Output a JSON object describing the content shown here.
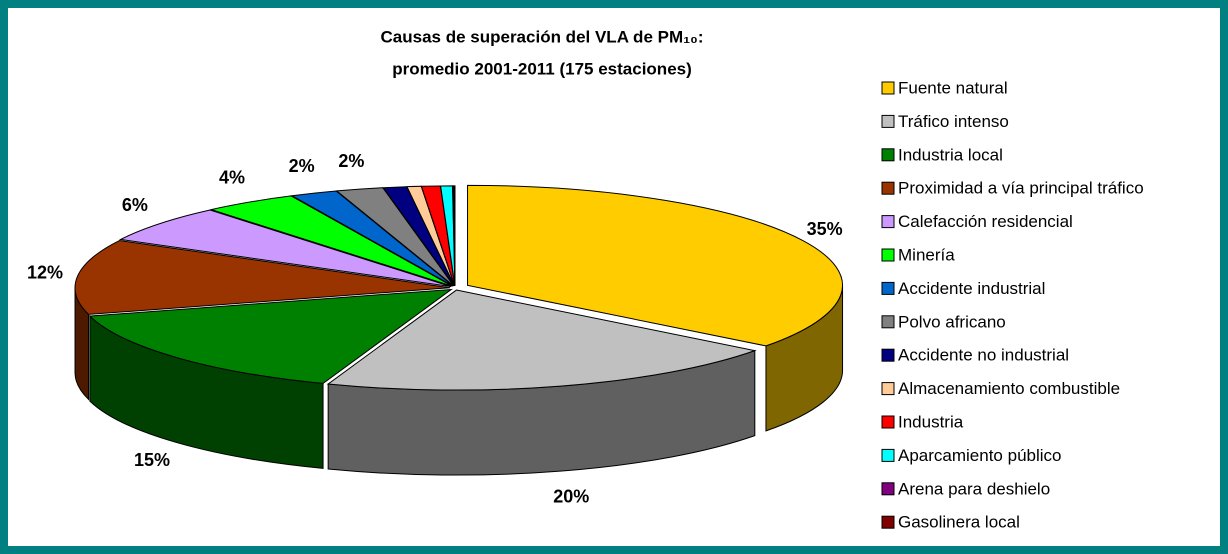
{
  "chart_data": {
    "type": "pie3d",
    "title": [
      "Causas de superación del VLA de PM₁₀:",
      "promedio 2001-2011 (175 estaciones)"
    ],
    "categories": [
      "Fuente natural",
      "Tráfico intenso",
      "Industria local",
      "Proximidad a vía principal tráfico",
      "Calefacción residencial",
      "Minería",
      "Accidente industrial",
      "Polvo africano",
      "Accidente no industrial",
      "Almacenamiento combustible",
      "Industria",
      "Aparcamiento público",
      "Arena para deshielo",
      "Gasolinera local"
    ],
    "values": [
      35,
      20,
      15,
      12,
      6,
      4,
      2,
      2,
      1,
      0.6,
      0.8,
      0.5,
      0.05,
      0.05
    ],
    "value_labels": [
      "35%",
      "20%",
      "15%",
      "12%",
      "6%",
      "4%",
      "2%",
      "2%",
      null,
      null,
      null,
      null,
      null,
      null
    ],
    "colors": [
      "#ffcc00",
      "#c0c0c0",
      "#008000",
      "#993300",
      "#cc99ff",
      "#00ff00",
      "#0066cc",
      "#808080",
      "#000080",
      "#ffcc99",
      "#ff0000",
      "#00ffff",
      "#800080",
      "#800000"
    ],
    "legend": "right"
  }
}
